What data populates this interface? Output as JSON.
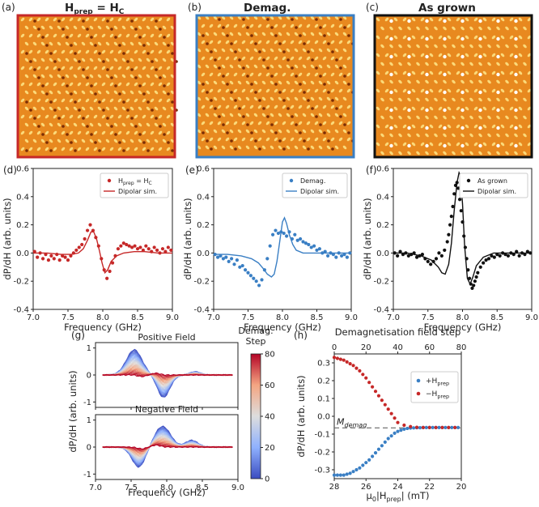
{
  "colors": {
    "red": "#c62828",
    "blue": "#3a7fc4",
    "black": "#111111",
    "image_base": "#e8891f",
    "image_light": "#fbd979",
    "image_dark": "#7a2c05"
  },
  "images": [
    {
      "label": "(a)",
      "title": "H",
      "title_sub": "prep",
      "title_suffix": " = H",
      "title_sub2": "C",
      "frame_color": "#c62828"
    },
    {
      "label": "(b)",
      "title": "Demag.",
      "frame_color": "#3a7fc4"
    },
    {
      "label": "(c)",
      "title": "As grown",
      "frame_color": "#111111"
    }
  ],
  "chart_data": [
    {
      "panel": "(d)",
      "type": "scatter",
      "xlabel": "Frequency (GHz)",
      "ylabel": "dP/dH (arb. units)",
      "xlim": [
        7.0,
        9.0
      ],
      "ylim": [
        -0.4,
        0.6
      ],
      "xticks": [
        "7.0",
        "7.5",
        "8.0",
        "8.5",
        "9.0"
      ],
      "yticks": [
        "-0.4",
        "-0.2",
        "0.0",
        "0.2",
        "0.4",
        "0.6"
      ],
      "legend_position": "top-right",
      "series": [
        {
          "name": "H",
          "name_sub": "prep",
          "name_suffix": " = H",
          "name_sub2": "C",
          "kind": "points",
          "color": "#c62828",
          "x": [
            7.02,
            7.06,
            7.1,
            7.14,
            7.18,
            7.22,
            7.26,
            7.3,
            7.34,
            7.38,
            7.42,
            7.46,
            7.5,
            7.54,
            7.58,
            7.62,
            7.66,
            7.7,
            7.74,
            7.78,
            7.82,
            7.86,
            7.9,
            7.94,
            7.98,
            8.02,
            8.06,
            8.1,
            8.14,
            8.18,
            8.22,
            8.26,
            8.3,
            8.34,
            8.38,
            8.42,
            8.46,
            8.5,
            8.54,
            8.58,
            8.62,
            8.66,
            8.7,
            8.74,
            8.78,
            8.82,
            8.86,
            8.9,
            8.94,
            8.98
          ],
          "y": [
            0.01,
            -0.03,
            0.0,
            -0.04,
            -0.01,
            -0.05,
            -0.02,
            -0.04,
            -0.01,
            -0.05,
            -0.02,
            -0.03,
            -0.05,
            -0.02,
            0.0,
            0.02,
            0.04,
            0.06,
            0.1,
            0.16,
            0.2,
            0.16,
            0.11,
            0.05,
            -0.04,
            -0.12,
            -0.18,
            -0.13,
            -0.07,
            -0.02,
            0.03,
            0.05,
            0.07,
            0.06,
            0.05,
            0.04,
            0.05,
            0.03,
            0.04,
            0.02,
            0.05,
            0.03,
            0.01,
            0.04,
            0.02,
            0.0,
            0.03,
            0.01,
            0.04,
            0.02
          ]
        },
        {
          "name": "Dipolar sim.",
          "kind": "line",
          "color": "#c62828",
          "x": [
            7.0,
            7.2,
            7.4,
            7.55,
            7.65,
            7.72,
            7.78,
            7.83,
            7.87,
            7.91,
            7.95,
            7.99,
            8.03,
            8.07,
            8.12,
            8.2,
            8.3,
            8.45,
            8.6,
            8.8,
            9.0
          ],
          "y": [
            0.0,
            0.0,
            -0.01,
            -0.01,
            0.0,
            0.03,
            0.09,
            0.15,
            0.15,
            0.1,
            0.02,
            -0.07,
            -0.14,
            -0.12,
            -0.06,
            -0.02,
            0.0,
            0.01,
            0.01,
            0.0,
            0.0
          ]
        }
      ]
    },
    {
      "panel": "(e)",
      "type": "scatter",
      "xlabel": "Frequency (GHz)",
      "ylabel": "dP/dH (arb. units)",
      "xlim": [
        7.0,
        9.0
      ],
      "ylim": [
        -0.4,
        0.6
      ],
      "xticks": [
        "7.0",
        "7.5",
        "8.0",
        "8.5",
        "9.0"
      ],
      "yticks": [
        "-0.4",
        "-0.2",
        "0.0",
        "0.2",
        "0.4",
        "0.6"
      ],
      "legend_position": "top-right",
      "series": [
        {
          "name": "Demag.",
          "kind": "points",
          "color": "#3a7fc4",
          "x": [
            7.02,
            7.06,
            7.1,
            7.14,
            7.18,
            7.22,
            7.26,
            7.3,
            7.34,
            7.38,
            7.42,
            7.46,
            7.5,
            7.54,
            7.58,
            7.62,
            7.66,
            7.7,
            7.74,
            7.78,
            7.82,
            7.86,
            7.9,
            7.94,
            7.98,
            8.02,
            8.06,
            8.1,
            8.14,
            8.18,
            8.22,
            8.26,
            8.3,
            8.34,
            8.38,
            8.42,
            8.46,
            8.5,
            8.54,
            8.58,
            8.62,
            8.66,
            8.7,
            8.74,
            8.78,
            8.82,
            8.86,
            8.9,
            8.94,
            8.98
          ],
          "y": [
            -0.01,
            -0.03,
            -0.02,
            -0.04,
            -0.03,
            -0.06,
            -0.04,
            -0.08,
            -0.05,
            -0.1,
            -0.09,
            -0.12,
            -0.14,
            -0.16,
            -0.18,
            -0.2,
            -0.23,
            -0.19,
            -0.12,
            -0.04,
            0.05,
            0.13,
            0.16,
            0.14,
            0.15,
            0.14,
            0.12,
            0.15,
            0.1,
            0.13,
            0.09,
            0.1,
            0.08,
            0.07,
            0.06,
            0.04,
            0.05,
            0.02,
            0.03,
            0.0,
            0.01,
            -0.02,
            0.0,
            -0.01,
            -0.03,
            0.0,
            -0.02,
            -0.01,
            -0.03,
            0.0
          ]
        },
        {
          "name": "Dipolar sim.",
          "kind": "line",
          "color": "#3a7fc4",
          "x": [
            7.0,
            7.2,
            7.4,
            7.55,
            7.65,
            7.72,
            7.78,
            7.84,
            7.88,
            7.92,
            7.96,
            8.0,
            8.03,
            8.06,
            8.1,
            8.15,
            8.2,
            8.3,
            8.45,
            8.6,
            8.8,
            9.0
          ],
          "y": [
            -0.01,
            -0.01,
            -0.02,
            -0.04,
            -0.07,
            -0.11,
            -0.15,
            -0.17,
            -0.15,
            -0.06,
            0.08,
            0.22,
            0.25,
            0.21,
            0.13,
            0.06,
            0.02,
            0.0,
            0.0,
            0.0,
            0.0,
            0.0
          ]
        }
      ]
    },
    {
      "panel": "(f)",
      "type": "scatter",
      "xlabel": "Frequency (GHz)",
      "ylabel": "dP/dH (arb. units)",
      "xlim": [
        7.0,
        9.0
      ],
      "ylim": [
        -0.4,
        0.6
      ],
      "xticks": [
        "7.0",
        "7.5",
        "8.0",
        "8.5",
        "9.0"
      ],
      "yticks": [
        "-0.4",
        "-0.2",
        "0.0",
        "0.2",
        "0.4",
        "0.6"
      ],
      "legend_position": "top-right",
      "series": [
        {
          "name": "As grown",
          "kind": "points",
          "color": "#111111",
          "x": [
            7.02,
            7.06,
            7.1,
            7.14,
            7.18,
            7.22,
            7.26,
            7.3,
            7.34,
            7.38,
            7.42,
            7.46,
            7.5,
            7.54,
            7.58,
            7.62,
            7.66,
            7.7,
            7.74,
            7.78,
            7.8,
            7.82,
            7.84,
            7.86,
            7.88,
            7.9,
            7.92,
            7.94,
            7.96,
            7.98,
            8.0,
            8.02,
            8.04,
            8.06,
            8.08,
            8.1,
            8.12,
            8.14,
            8.16,
            8.18,
            8.2,
            8.22,
            8.26,
            8.3,
            8.34,
            8.38,
            8.42,
            8.46,
            8.5,
            8.54,
            8.58,
            8.62,
            8.66,
            8.7,
            8.74,
            8.78,
            8.82,
            8.86,
            8.9,
            8.94,
            8.98
          ],
          "y": [
            0.0,
            -0.02,
            0.01,
            -0.01,
            0.0,
            -0.02,
            -0.01,
            0.0,
            -0.03,
            -0.02,
            -0.01,
            -0.04,
            -0.06,
            -0.08,
            -0.06,
            -0.04,
            0.0,
            -0.02,
            0.02,
            0.08,
            0.13,
            0.2,
            0.26,
            0.33,
            0.42,
            0.48,
            0.5,
            0.46,
            0.38,
            0.3,
            0.22,
            0.12,
            0.04,
            -0.04,
            -0.12,
            -0.18,
            -0.22,
            -0.25,
            -0.23,
            -0.2,
            -0.17,
            -0.14,
            -0.1,
            -0.07,
            -0.05,
            -0.04,
            -0.02,
            -0.03,
            -0.01,
            -0.02,
            0.0,
            -0.01,
            -0.02,
            0.0,
            -0.01,
            0.01,
            -0.02,
            0.0,
            -0.01,
            0.01,
            0.0
          ]
        },
        {
          "name": "Dipolar sim.",
          "kind": "line",
          "color": "#111111",
          "x": [
            7.0,
            7.2,
            7.4,
            7.55,
            7.65,
            7.7,
            7.75,
            7.8,
            7.84,
            7.88,
            7.92,
            7.95,
            7.97,
            8.0,
            8.03,
            8.07,
            8.11,
            8.15,
            8.2,
            8.3,
            8.45,
            8.6,
            8.8,
            9.0
          ],
          "y": [
            0.0,
            0.0,
            -0.02,
            -0.05,
            -0.1,
            -0.14,
            -0.15,
            -0.08,
            0.07,
            0.3,
            0.5,
            0.57,
            0.55,
            0.35,
            0.05,
            -0.18,
            -0.22,
            -0.17,
            -0.09,
            -0.03,
            0.0,
            0.0,
            0.0,
            0.0
          ]
        }
      ]
    },
    {
      "panel": "(g)",
      "type": "line",
      "subplots": [
        {
          "title": "Positive Field",
          "sign": 1
        },
        {
          "title": "Negative Field",
          "sign": -1
        }
      ],
      "xlabel": "Frequency (GHz)",
      "ylabel": "dP/dH (arb. units)",
      "xlim": [
        7.0,
        9.0
      ],
      "ylim": [
        -1.2,
        1.2
      ],
      "xticks": [
        "7.0",
        "7.5",
        "8.0",
        "8.5",
        "9.0"
      ],
      "yticks": [
        "1",
        "0",
        "-1"
      ],
      "series_count": 40,
      "colorbar": {
        "label_line1": "Demag.",
        "label_line2": "Step",
        "min": 0,
        "max": 80,
        "ticks": [
          "0",
          "20",
          "40",
          "60",
          "80"
        ],
        "stops": [
          "#3b4cc0",
          "#8fb1fe",
          "#dddddd",
          "#f4a582",
          "#b40426"
        ]
      }
    },
    {
      "panel": "(h)",
      "type": "scatter",
      "xlabel": "μ",
      "xlabel_sub": "0",
      "xlabel_suffix": "|H",
      "xlabel_sub2": "prep",
      "xlabel_end": "| (mT)",
      "x2label": "Demagnetisation field step",
      "ylabel": "dP/dH (arb. units)",
      "xlim": [
        28,
        20
      ],
      "x2lim": [
        0,
        80
      ],
      "ylim": [
        -0.35,
        0.35
      ],
      "xticks": [
        "28",
        "26",
        "24",
        "22",
        "20"
      ],
      "x2ticks": [
        "0",
        "20",
        "40",
        "60",
        "80"
      ],
      "yticks": [
        "0.3",
        "0.2",
        "0.1",
        "0.0",
        "-0.1",
        "-0.2",
        "-0.3"
      ],
      "annotation": "M",
      "annotation_sub": "demag",
      "annotation_y": -0.065,
      "legend_position": "top-right",
      "series": [
        {
          "name": "+H",
          "name_sub": "prep",
          "color": "#3a7fc4",
          "x": [
            28.0,
            27.8,
            27.6,
            27.4,
            27.2,
            27.0,
            26.8,
            26.6,
            26.4,
            26.2,
            26.0,
            25.8,
            25.6,
            25.4,
            25.2,
            25.0,
            24.8,
            24.6,
            24.4,
            24.2,
            24.0,
            23.8,
            23.6,
            23.4,
            23.2,
            23.0,
            22.8,
            22.6,
            22.4,
            22.2,
            22.0,
            21.8,
            21.6,
            21.4,
            21.2,
            21.0,
            20.8,
            20.6,
            20.4,
            20.2
          ],
          "y": [
            -0.33,
            -0.33,
            -0.33,
            -0.33,
            -0.325,
            -0.32,
            -0.31,
            -0.3,
            -0.29,
            -0.275,
            -0.26,
            -0.245,
            -0.225,
            -0.205,
            -0.185,
            -0.165,
            -0.145,
            -0.125,
            -0.11,
            -0.095,
            -0.085,
            -0.078,
            -0.072,
            -0.068,
            -0.066,
            -0.065,
            -0.064,
            -0.064,
            -0.063,
            -0.063,
            -0.063,
            -0.063,
            -0.063,
            -0.063,
            -0.063,
            -0.063,
            -0.063,
            -0.063,
            -0.063,
            -0.063
          ]
        },
        {
          "name": "−H",
          "name_sub": "prep",
          "color": "#c62828",
          "x": [
            28.0,
            27.8,
            27.6,
            27.4,
            27.2,
            27.0,
            26.8,
            26.6,
            26.4,
            26.2,
            26.0,
            25.8,
            25.6,
            25.4,
            25.2,
            25.0,
            24.8,
            24.6,
            24.4,
            24.2,
            24.0,
            23.6,
            23.2,
            22.8,
            22.4,
            22.0,
            21.6,
            21.2,
            20.8,
            20.4
          ],
          "y": [
            0.33,
            0.325,
            0.32,
            0.315,
            0.305,
            0.295,
            0.285,
            0.27,
            0.255,
            0.235,
            0.215,
            0.19,
            0.165,
            0.14,
            0.115,
            0.09,
            0.065,
            0.04,
            0.015,
            -0.01,
            -0.035,
            -0.05,
            -0.058,
            -0.062,
            -0.063,
            -0.063,
            -0.063,
            -0.063,
            -0.063,
            -0.063
          ]
        }
      ]
    }
  ]
}
